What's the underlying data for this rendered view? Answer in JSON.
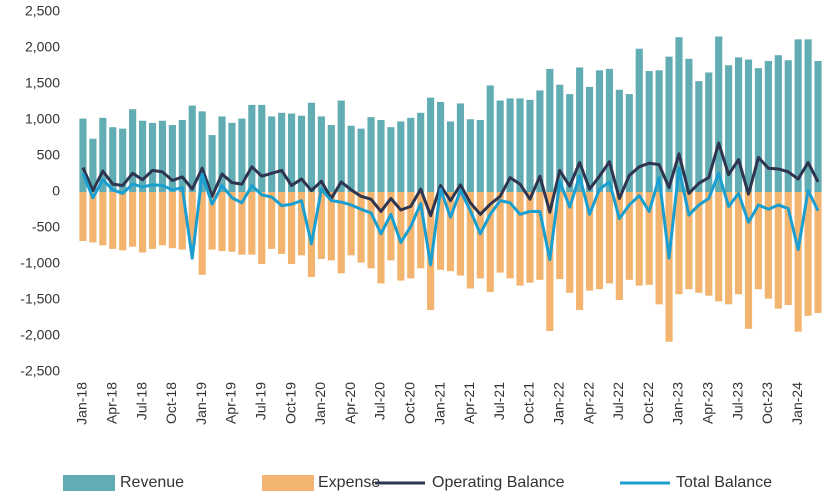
{
  "chart_data": {
    "type": "bar",
    "categories": [
      "Jan-18",
      null,
      null,
      "Apr-18",
      null,
      null,
      "Jul-18",
      null,
      null,
      "Oct-18",
      null,
      null,
      "Jan-19",
      null,
      null,
      "Apr-19",
      null,
      null,
      "Jul-19",
      null,
      null,
      "Oct-19",
      null,
      null,
      "Jan-20",
      null,
      null,
      "Apr-20",
      null,
      null,
      "Jul-20",
      null,
      null,
      "Oct-20",
      null,
      null,
      "Jan-21",
      null,
      null,
      "Apr-21",
      null,
      null,
      "Jul-21",
      null,
      null,
      "Oct-21",
      null,
      null,
      "Jan-22",
      null,
      null,
      "Apr-22",
      null,
      null,
      "Jul-22",
      null,
      null,
      "Oct-22",
      null,
      null,
      "Jan-23",
      null,
      null,
      "Apr-23",
      null,
      null,
      "Jul-23",
      null,
      null,
      "Oct-23",
      null,
      null,
      "Jan-24",
      null,
      null
    ],
    "series": [
      {
        "name": "Revenue",
        "kind": "bar",
        "color": "#62adb3",
        "values": [
          1020,
          740,
          1030,
          900,
          880,
          1150,
          990,
          960,
          990,
          930,
          1000,
          1200,
          1120,
          790,
          1050,
          960,
          1020,
          1210,
          1210,
          1050,
          1100,
          1090,
          1060,
          1240,
          1050,
          930,
          1270,
          920,
          880,
          1040,
          1000,
          900,
          980,
          1030,
          1100,
          1310,
          1250,
          980,
          1230,
          1010,
          1000,
          1480,
          1270,
          1300,
          1300,
          1280,
          1410,
          1710,
          1490,
          1360,
          1730,
          1460,
          1690,
          1710,
          1420,
          1360,
          1990,
          1680,
          1690,
          1880,
          2150,
          1850,
          1540,
          1660,
          2160,
          1760,
          1870,
          1840,
          1720,
          1820,
          1900,
          1830,
          2120,
          2120,
          1820
        ]
      },
      {
        "name": "Expense",
        "kind": "bar",
        "color": "#f2b46e",
        "values": [
          -680,
          -700,
          -740,
          -790,
          -810,
          -760,
          -840,
          -790,
          -740,
          -780,
          -800,
          -740,
          -1150,
          -800,
          -820,
          -830,
          -870,
          -870,
          -1000,
          -790,
          -860,
          -1000,
          -880,
          -1180,
          -930,
          -950,
          -1130,
          -880,
          -980,
          -1060,
          -1270,
          -950,
          -1230,
          -1200,
          -1060,
          -1640,
          -1080,
          -1100,
          -1160,
          -1340,
          -1200,
          -1390,
          -1120,
          -1200,
          -1300,
          -1260,
          -1220,
          -1930,
          -1210,
          -1400,
          -1640,
          -1370,
          -1350,
          -1270,
          -1500,
          -1220,
          -1300,
          -1290,
          -1560,
          -2080,
          -1420,
          -1350,
          -1400,
          -1440,
          -1520,
          -1560,
          -1420,
          -1900,
          -1350,
          -1480,
          -1620,
          -1570,
          -1940,
          -1720,
          -1680
        ]
      },
      {
        "name": "Operating Balance",
        "kind": "line",
        "color": "#2e3550",
        "values": [
          340,
          20,
          290,
          110,
          90,
          260,
          170,
          300,
          280,
          160,
          210,
          40,
          330,
          -60,
          250,
          130,
          110,
          350,
          220,
          260,
          300,
          90,
          180,
          20,
          150,
          -90,
          140,
          30,
          -60,
          -100,
          -270,
          -90,
          -250,
          -200,
          40,
          -330,
          90,
          -120,
          100,
          -150,
          -310,
          -170,
          -60,
          200,
          110,
          -100,
          220,
          -280,
          300,
          80,
          410,
          40,
          220,
          420,
          -90,
          230,
          350,
          400,
          380,
          60,
          530,
          -20,
          120,
          200,
          680,
          240,
          450,
          -30,
          480,
          330,
          320,
          280,
          180,
          410,
          140
        ]
      },
      {
        "name": "Total Balance",
        "kind": "line",
        "color": "#1a9fd0",
        "values": [
          260,
          -80,
          170,
          30,
          -20,
          110,
          70,
          100,
          90,
          30,
          60,
          -920,
          250,
          -170,
          90,
          -80,
          -150,
          90,
          -40,
          -70,
          -190,
          -170,
          -120,
          -720,
          40,
          -120,
          -140,
          -180,
          -240,
          -290,
          -580,
          -310,
          -700,
          -480,
          -160,
          -1010,
          40,
          -350,
          20,
          -260,
          -580,
          -310,
          -120,
          -150,
          -310,
          -270,
          -270,
          -940,
          150,
          -210,
          220,
          -310,
          40,
          140,
          -370,
          -180,
          -50,
          -270,
          200,
          -920,
          330,
          -320,
          -180,
          -90,
          260,
          -200,
          -20,
          -420,
          -180,
          -240,
          -180,
          -230,
          -800,
          20,
          -260
        ]
      }
    ],
    "ylim": [
      -2500,
      2500
    ],
    "yticks": [
      {
        "value": -2500,
        "label": "-2,500"
      },
      {
        "value": -2000,
        "label": "-2,000"
      },
      {
        "value": -1500,
        "label": "-1,500"
      },
      {
        "value": -1000,
        "label": "-1,000"
      },
      -500,
      0,
      500,
      {
        "value": 1000,
        "label": "1,000"
      },
      {
        "value": 1500,
        "label": "1,500"
      },
      {
        "value": 2000,
        "label": "2,000"
      },
      {
        "value": 2500,
        "label": "2,500"
      }
    ],
    "grid": false,
    "legend": "bottom"
  }
}
